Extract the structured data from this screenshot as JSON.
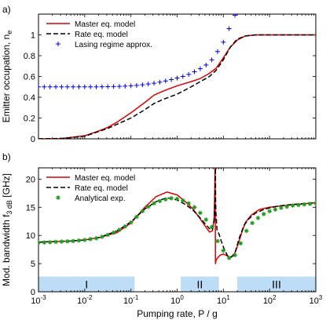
{
  "chart_data": [
    {
      "panel_label": "a)",
      "type": "line",
      "xlabel": "",
      "ylabel": "Emitter occupation, n",
      "ylabel_sub": "e",
      "xscale": "log",
      "xlim": [
        0.001,
        1000
      ],
      "ylim": [
        0,
        1.2
      ],
      "yticks": [
        0,
        0.2,
        0.4,
        0.6,
        0.8,
        1
      ],
      "ytick_labels": [
        "0",
        "0.2",
        "0.4",
        "0.6",
        "0.8",
        "1"
      ],
      "legend_location": "top-left",
      "series": [
        {
          "name": "Master eq. model",
          "style": "solid",
          "color": "#e00000",
          "x": [
            0.001,
            0.00316,
            0.01,
            0.02,
            0.0316,
            0.05,
            0.1,
            0.2,
            0.316,
            0.5,
            1,
            2,
            3.16,
            5,
            7,
            10,
            14,
            20,
            30,
            50,
            100,
            1000
          ],
          "y": [
            0.0,
            0.003,
            0.03,
            0.075,
            0.11,
            0.16,
            0.25,
            0.35,
            0.42,
            0.46,
            0.51,
            0.55,
            0.58,
            0.63,
            0.68,
            0.78,
            0.88,
            0.95,
            0.99,
            1.0,
            1.0,
            1.0
          ]
        },
        {
          "name": "Rate eq. model",
          "style": "dashed",
          "color": "#000000",
          "x": [
            0.001,
            0.00316,
            0.01,
            0.02,
            0.0316,
            0.05,
            0.1,
            0.2,
            0.316,
            0.5,
            1,
            2,
            3.16,
            5,
            7,
            10,
            14,
            20,
            30,
            50,
            100,
            1000
          ],
          "y": [
            0.0,
            0.003,
            0.025,
            0.07,
            0.1,
            0.14,
            0.2,
            0.28,
            0.34,
            0.38,
            0.43,
            0.5,
            0.55,
            0.6,
            0.66,
            0.76,
            0.88,
            0.96,
            0.99,
            1.0,
            1.0,
            1.0
          ]
        },
        {
          "name": "Lasing regime approx.",
          "style": "markers",
          "marker": "+",
          "color": "#0000ee",
          "x": [
            0.001,
            0.00133,
            0.00178,
            0.00237,
            0.00316,
            0.00422,
            0.00562,
            0.0075,
            0.01,
            0.0133,
            0.0178,
            0.0237,
            0.0316,
            0.0422,
            0.0562,
            0.075,
            0.1,
            0.133,
            0.178,
            0.237,
            0.316,
            0.422,
            0.562,
            0.75,
            1,
            1.33,
            1.78,
            2.37,
            3.16,
            4.22,
            5.62,
            7.5,
            10,
            13.3,
            17.8
          ],
          "y": [
            0.5,
            0.5,
            0.5,
            0.5,
            0.5,
            0.5,
            0.5,
            0.5,
            0.5,
            0.5,
            0.5,
            0.501,
            0.502,
            0.503,
            0.505,
            0.507,
            0.51,
            0.514,
            0.52,
            0.527,
            0.535,
            0.545,
            0.557,
            0.57,
            0.585,
            0.6,
            0.62,
            0.645,
            0.675,
            0.71,
            0.76,
            0.84,
            0.93,
            1.06,
            1.19
          ]
        }
      ]
    },
    {
      "panel_label": "b)",
      "type": "line",
      "xlabel": "Pumping rate, P / g",
      "ylabel": "Mod. bandwidth f",
      "ylabel_sub": "3 dB",
      "ylabel_unit": " [GHz]",
      "xscale": "log",
      "xlim": [
        0.001,
        1000
      ],
      "ylim": [
        0,
        22
      ],
      "xticks": [
        0.001,
        0.01,
        0.1,
        1,
        10,
        100,
        1000
      ],
      "xtick_labels": [
        {
          "base": "10",
          "exp": "-3"
        },
        {
          "base": "10",
          "exp": "-2"
        },
        {
          "base": "10",
          "exp": "-1"
        },
        {
          "base": "10",
          "exp": "0"
        },
        {
          "base": "10",
          "exp": "1"
        },
        {
          "base": "10",
          "exp": "2"
        },
        {
          "base": "10",
          "exp": "3"
        }
      ],
      "yticks": [
        0,
        5,
        10,
        15,
        20
      ],
      "ytick_labels": [
        "0",
        "5",
        "10",
        "15",
        "20"
      ],
      "legend_location": "top-left",
      "regions": [
        {
          "label": "I",
          "x_start": 0.001,
          "x_end": 0.12,
          "y_range": [
            0,
            2.7
          ],
          "color": "#bddcf5"
        },
        {
          "label": "II",
          "x_start": 1.2,
          "x_end": 8,
          "y_range": [
            0,
            2.7
          ],
          "color": "#bddcf5"
        },
        {
          "label": "III",
          "x_start": 20,
          "x_end": 1000,
          "y_range": [
            0,
            2.7
          ],
          "color": "#bddcf5"
        }
      ],
      "series": [
        {
          "name": "Master eq. model",
          "style": "solid",
          "color": "#e00000",
          "x": [
            0.001,
            0.002,
            0.005,
            0.01,
            0.02,
            0.05,
            0.1,
            0.2,
            0.35,
            0.6,
            1,
            1.5,
            2.2,
            3,
            4,
            5,
            5.8,
            6.3,
            6.5,
            6.6,
            6.7,
            6.75,
            6.9,
            7.5,
            8.5,
            10,
            12,
            14,
            17,
            20,
            25,
            30,
            40,
            60,
            100,
            200,
            500,
            1000
          ],
          "y": [
            8.8,
            8.9,
            9.0,
            9.2,
            9.6,
            10.5,
            12.2,
            15.0,
            16.9,
            17.7,
            17.2,
            16.0,
            14.7,
            13.2,
            11.7,
            10.6,
            10.8,
            13.0,
            18.0,
            22.0,
            13.0,
            5.0,
            5.5,
            6.0,
            6.5,
            6.7,
            6.4,
            6.0,
            6.5,
            8.0,
            10.5,
            12.3,
            13.6,
            14.6,
            15.0,
            15.3,
            15.6,
            15.8
          ]
        },
        {
          "name": "Rate eq. model",
          "style": "dashed",
          "color": "#000000",
          "x": [
            0.001,
            0.002,
            0.005,
            0.01,
            0.02,
            0.05,
            0.1,
            0.2,
            0.35,
            0.6,
            1,
            1.5,
            2.2,
            3,
            4,
            5,
            5.8,
            6.3,
            6.6,
            6.75,
            6.8,
            6.9,
            7.3,
            8,
            9,
            10.5,
            12.5,
            15,
            18,
            22,
            28,
            35,
            50,
            80,
            150,
            300,
            1000
          ],
          "y": [
            8.8,
            8.9,
            9.0,
            9.2,
            9.6,
            10.8,
            12.4,
            14.7,
            16.0,
            16.7,
            16.3,
            15.5,
            14.5,
            13.3,
            12.1,
            11.2,
            11.0,
            12.5,
            16.0,
            22.0,
            16.0,
            14.0,
            11.0,
            10.3,
            9.0,
            7.5,
            6.3,
            6.2,
            7.0,
            9.5,
            11.8,
            12.9,
            14.0,
            14.7,
            15.2,
            15.5,
            15.8
          ]
        },
        {
          "name": "Analytical exp.",
          "style": "markers",
          "marker": "*",
          "color": "#1f9a1f",
          "x": [
            0.001,
            0.00133,
            0.00178,
            0.00237,
            0.00316,
            0.00422,
            0.00562,
            0.0075,
            0.01,
            0.0133,
            0.0178,
            0.0237,
            0.0316,
            0.0422,
            0.0562,
            0.075,
            0.1,
            0.133,
            0.178,
            0.237,
            0.316,
            0.422,
            0.562,
            0.75,
            1,
            1.33,
            1.78,
            2.37,
            3.16,
            4.22,
            5.62,
            7.5,
            10,
            13.3,
            17.8,
            23.7,
            31.6,
            42.2,
            56.2,
            75,
            100,
            133,
            178,
            237,
            316,
            422,
            562,
            750,
            1000
          ],
          "y": [
            8.7,
            8.75,
            8.8,
            8.85,
            8.9,
            8.95,
            9.0,
            9.1,
            9.2,
            9.35,
            9.5,
            9.75,
            10.1,
            10.5,
            11.0,
            11.6,
            12.3,
            13.3,
            14.3,
            15.1,
            15.7,
            16.1,
            16.4,
            16.6,
            16.5,
            16.2,
            15.7,
            15.0,
            14.0,
            12.8,
            11.5,
            9.0,
            7.3,
            6.0,
            6.5,
            8.6,
            10.8,
            12.2,
            13.1,
            13.8,
            14.3,
            14.6,
            14.9,
            15.1,
            15.3,
            15.4,
            15.5,
            15.6,
            15.7
          ]
        }
      ]
    }
  ]
}
